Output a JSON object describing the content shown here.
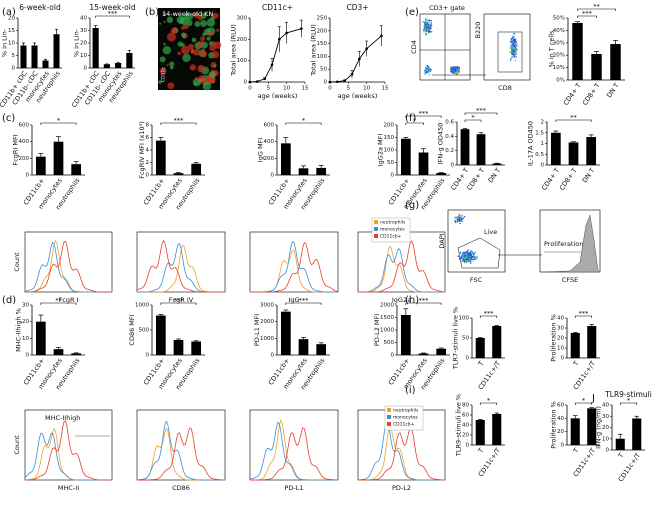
{
  "panel_labels": [
    "(a)",
    "(b)",
    "(c)",
    "(d)",
    "(e)",
    "(f)",
    "(g)",
    "(h)",
    "(i)",
    "J"
  ],
  "image_b": {
    "title": "14-week-old KN",
    "stain": "CD11c"
  },
  "flow_e": {
    "gate": "CD3+ gate",
    "y_label": "CD4",
    "x_label": "CD8",
    "y_label2": "B220"
  },
  "flow_g": {
    "y_label": "DAPI",
    "x_label": "FSC",
    "live": "Live",
    "proliferation": "Proliferation",
    "x_label2": "CFSE"
  },
  "histogram_rows": [
    {
      "y_label": "Count",
      "x_labels": [
        "FcgR I",
        "FcgR IV",
        "IgG",
        "IgG2a"
      ],
      "legend": [
        {
          "name": "neutrophils",
          "color": "#f0a030"
        },
        {
          "name": "monocytes",
          "color": "#3a8fd8"
        },
        {
          "name": "CD11cb+",
          "color": "#e8402a"
        }
      ]
    },
    {
      "y_label": "Count",
      "x_labels": [
        "MHC-II",
        "CD86",
        "PD-L1",
        "PD-L2"
      ],
      "gate": "MHC-IIhigh",
      "legend": [
        {
          "name": "neutrophils",
          "color": "#f0a030"
        },
        {
          "name": "monocytes",
          "color": "#3a8fd8"
        },
        {
          "name": "CD11cb+",
          "color": "#e8402a"
        }
      ]
    }
  ],
  "chart_data": [
    {
      "type": "bar",
      "title": "6-week-old",
      "y_label": "% in Lin-",
      "categories": [
        "CD11b+ cDC",
        "CD11b- cDC",
        "monocytes",
        "neutrophils"
      ],
      "values": [
        9,
        9,
        3,
        13.5
      ],
      "errors": [
        1,
        1,
        0.5,
        2
      ],
      "color": "#000000",
      "ylim": [
        0,
        20
      ],
      "yticks": [
        0,
        5,
        10,
        15,
        20
      ],
      "annotations": []
    },
    {
      "type": "bar",
      "title": "15-week-old",
      "y_label": "% in Lin-",
      "categories": [
        "CD11b+ cDC",
        "CD11b- cDC",
        "monocytes",
        "neutrophils"
      ],
      "values": [
        32,
        3,
        4,
        12
      ],
      "errors": [
        2,
        0.3,
        0.4,
        2
      ],
      "color": "#000000",
      "ylim": [
        0,
        40
      ],
      "yticks": [
        0,
        10,
        20,
        30,
        40
      ],
      "annotations": [
        "***"
      ]
    },
    {
      "type": "line",
      "title": "CD11c+",
      "y_label": "Total area (RLU)",
      "x_label": "age (weeks)",
      "x": [
        0,
        2,
        4,
        6,
        8,
        10,
        14
      ],
      "values": [
        0,
        2,
        15,
        80,
        200,
        230,
        250
      ],
      "errors": [
        0,
        1,
        5,
        30,
        60,
        50,
        40
      ],
      "color": "#000000",
      "xlim": [
        0,
        15
      ],
      "xticks": [
        0,
        5,
        10,
        15
      ],
      "ylim": [
        0,
        300
      ],
      "yticks": [
        0,
        100,
        200,
        300
      ]
    },
    {
      "type": "line",
      "title": "CD3+",
      "y_label": "Total area (RLU)",
      "x_label": "age (weeks)",
      "x": [
        0,
        2,
        4,
        6,
        8,
        10,
        14
      ],
      "values": [
        0,
        1,
        5,
        30,
        90,
        130,
        180
      ],
      "errors": [
        0,
        1,
        3,
        15,
        30,
        30,
        40
      ],
      "color": "#000000",
      "xlim": [
        0,
        15
      ],
      "xticks": [
        0,
        5,
        10,
        15
      ],
      "ylim": [
        0,
        250
      ],
      "yticks": [
        0,
        50,
        100,
        150,
        200,
        250
      ]
    },
    {
      "type": "bar",
      "y_label": "FcgRI MFI",
      "categories": [
        "CD11cb+",
        "monocytes",
        "neutrophils"
      ],
      "values": [
        220,
        400,
        130
      ],
      "errors": [
        40,
        60,
        30
      ],
      "color": "#000000",
      "ylim": [
        0,
        600
      ],
      "yticks": [
        0,
        200,
        400,
        600
      ],
      "annotations": [
        "*"
      ]
    },
    {
      "type": "bar",
      "y_label": "FcgRIV MFI (x10³)",
      "categories": [
        "CD11cb+",
        "monocytes",
        "neutrophils"
      ],
      "values": [
        5.5,
        0.3,
        1.8
      ],
      "errors": [
        0.5,
        0.1,
        0.2
      ],
      "color": "#000000",
      "ylim": [
        0,
        8
      ],
      "yticks": [
        0,
        2,
        4,
        6,
        8
      ],
      "annotations": [
        "***"
      ]
    },
    {
      "type": "bar",
      "y_label": "IgG MFI",
      "categories": [
        "CD11cb+",
        "monocytes",
        "neutrophils"
      ],
      "values": [
        380,
        80,
        85
      ],
      "errors": [
        70,
        30,
        30
      ],
      "color": "#000000",
      "ylim": [
        0,
        600
      ],
      "yticks": [
        0,
        200,
        400,
        600
      ],
      "annotations": [
        "*"
      ]
    },
    {
      "type": "bar",
      "y_label": "IgG2a MFI",
      "categories": [
        "CD11cb+",
        "monocytes",
        "neutrophils"
      ],
      "values": [
        145,
        90,
        8
      ],
      "errors": [
        5,
        15,
        2
      ],
      "color": "#000000",
      "ylim": [
        0,
        200
      ],
      "yticks": [
        0,
        50,
        100,
        150,
        200
      ],
      "annotations": [
        "*",
        "***"
      ]
    },
    {
      "type": "bar",
      "y_label": "MHC-IIhigh %",
      "categories": [
        "CD11cb+",
        "monocytes",
        "neutrophils"
      ],
      "values": [
        20,
        3.5,
        1
      ],
      "errors": [
        4,
        1,
        0.3
      ],
      "color": "#000000",
      "ylim": [
        0,
        30
      ],
      "yticks": [
        0,
        10,
        20,
        30
      ],
      "annotations": [
        "**"
      ]
    },
    {
      "type": "bar",
      "y_label": "CD86 MFI",
      "categories": [
        "CD11cb+",
        "monocytes",
        "neutrophils"
      ],
      "values": [
        790,
        300,
        270
      ],
      "errors": [
        20,
        20,
        15
      ],
      "color": "#000000",
      "ylim": [
        0,
        1000
      ],
      "yticks": [
        0,
        500,
        1000
      ],
      "annotations": [
        "***"
      ]
    },
    {
      "type": "bar",
      "y_label": "PD-L1 MFI",
      "categories": [
        "CD11cb+",
        "monocytes",
        "neutrophils"
      ],
      "values": [
        2600,
        950,
        650
      ],
      "errors": [
        100,
        100,
        80
      ],
      "color": "#000000",
      "ylim": [
        0,
        3000
      ],
      "yticks": [
        0,
        1000,
        2000,
        3000
      ],
      "annotations": [
        "***"
      ]
    },
    {
      "type": "bar",
      "y_label": "PD-L2 MFI",
      "categories": [
        "CD11cb+",
        "monocytes",
        "neutrophils"
      ],
      "values": [
        1600,
        60,
        250
      ],
      "errors": [
        250,
        20,
        30
      ],
      "color": "#000000",
      "ylim": [
        0,
        2000
      ],
      "yticks": [
        0,
        500,
        1000,
        1500,
        2000
      ],
      "annotations": [
        "***"
      ]
    },
    {
      "type": "bar",
      "y_label": "% in T cells",
      "categories": [
        "CD4+ T",
        "CD8+ T",
        "DN T"
      ],
      "values": [
        46,
        21,
        29
      ],
      "errors": [
        1,
        2,
        3
      ],
      "color": "#000000",
      "ylim": [
        0,
        50
      ],
      "yticks": [
        {
          "value": 0,
          "label": "0%"
        },
        {
          "value": 10,
          "label": "10%"
        },
        {
          "value": 20,
          "label": "20%"
        },
        {
          "value": 30,
          "label": "30%"
        },
        {
          "value": 40,
          "label": "40%"
        },
        {
          "value": 50,
          "label": "50%"
        }
      ],
      "annotations": [
        "***",
        "**"
      ]
    },
    {
      "type": "bar",
      "y_label": "IFN-g OD450",
      "categories": [
        "CD4+ T",
        "CD8+ T",
        "DN T"
      ],
      "values": [
        0.5,
        0.43,
        0.02
      ],
      "errors": [
        0.01,
        0.02,
        0.005
      ],
      "color": "#000000",
      "ylim": [
        0,
        0.6
      ],
      "yticks": [
        0,
        0.2,
        0.4,
        0.6
      ],
      "annotations": [
        "*",
        "***"
      ]
    },
    {
      "type": "bar",
      "y_label": "IL-17A OD450",
      "categories": [
        "CD4+ T",
        "CD8+ T",
        "DN T"
      ],
      "values": [
        1.5,
        1.05,
        1.3
      ],
      "errors": [
        0.08,
        0.03,
        0.1
      ],
      "color": "#000000",
      "ylim": [
        0,
        2
      ],
      "yticks": [
        0,
        0.5,
        1,
        1.5,
        2
      ],
      "annotations": [
        "**"
      ]
    },
    {
      "type": "bar",
      "y_label": "TLR7-stimuli live %",
      "categories": [
        "T",
        "CD11c+/T"
      ],
      "values": [
        50,
        80
      ],
      "errors": [
        1,
        1
      ],
      "color": "#000000",
      "ylim": [
        0,
        100
      ],
      "yticks": [
        0,
        50,
        100
      ],
      "annotations": [
        "***"
      ]
    },
    {
      "type": "bar",
      "y_label": "Proliferation %",
      "categories": [
        "T",
        "CD11c+/T"
      ],
      "values": [
        25,
        32
      ],
      "errors": [
        0.5,
        1.5
      ],
      "color": "#000000",
      "ylim": [
        0,
        40
      ],
      "yticks": [
        0,
        10,
        20,
        30,
        40
      ],
      "annotations": [
        "***"
      ]
    },
    {
      "type": "bar",
      "y_label": "TLR9-stimuli live %",
      "categories": [
        "T",
        "CD11c+/T"
      ],
      "values": [
        50,
        62
      ],
      "errors": [
        1,
        2
      ],
      "color": "#000000",
      "ylim": [
        0,
        80
      ],
      "yticks": [
        0,
        20,
        40,
        60,
        80
      ],
      "annotations": [
        "*"
      ]
    },
    {
      "type": "bar",
      "y_label": "Proliferation %",
      "categories": [
        "T",
        "CD11c+/T"
      ],
      "values": [
        40,
        55
      ],
      "errors": [
        4,
        1
      ],
      "color": "#000000",
      "ylim": [
        0,
        60
      ],
      "yticks": [
        0,
        20,
        40,
        60
      ],
      "annotations": [
        "*"
      ]
    },
    {
      "type": "bar",
      "title": "TLR9-stimuli",
      "y_label": "IFN-g (ng/ml)",
      "categories": [
        "T",
        "CD11c+/T"
      ],
      "values": [
        10,
        28
      ],
      "errors": [
        4,
        2
      ],
      "color": "#000000",
      "ylim": [
        0,
        40
      ],
      "yticks": [
        0,
        10,
        20,
        30,
        40
      ],
      "annotations": [
        "*"
      ]
    }
  ]
}
